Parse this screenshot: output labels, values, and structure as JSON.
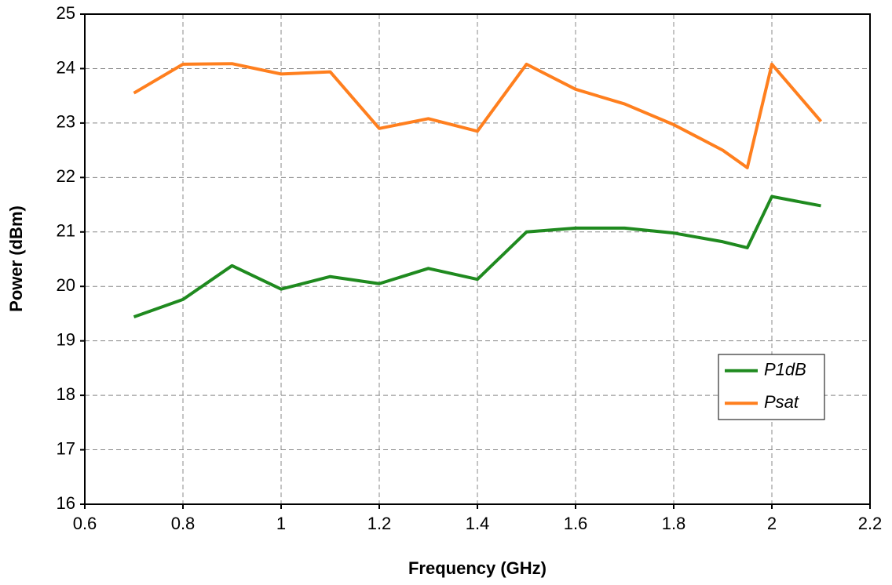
{
  "chart_data": {
    "type": "line",
    "xlabel": "Frequency (GHz)",
    "ylabel": "Power (dBm)",
    "x": [
      0.7,
      0.8,
      0.9,
      1.0,
      1.1,
      1.2,
      1.3,
      1.4,
      1.5,
      1.6,
      1.7,
      1.8,
      1.9,
      1.95,
      2.0,
      2.1
    ],
    "series": [
      {
        "name": "P1dB",
        "color": "#1f8a1f",
        "values": [
          19.44,
          19.76,
          20.38,
          19.95,
          20.18,
          20.05,
          20.33,
          20.13,
          21.0,
          21.07,
          21.07,
          20.98,
          20.82,
          20.71,
          21.65,
          21.48
        ]
      },
      {
        "name": "Psat",
        "color": "#ff7f1e",
        "values": [
          23.55,
          24.08,
          24.09,
          23.9,
          23.94,
          22.9,
          23.08,
          22.85,
          24.08,
          23.62,
          23.35,
          22.97,
          22.5,
          22.18,
          24.08,
          23.03
        ]
      }
    ],
    "xlim": [
      0.6,
      2.2
    ],
    "xticks": [
      0.6,
      0.8,
      1,
      1.2,
      1.4,
      1.6,
      1.8,
      2,
      2.2
    ],
    "ylim": [
      16,
      25
    ],
    "yticks": [
      16,
      17,
      18,
      19,
      20,
      21,
      22,
      23,
      24,
      25
    ],
    "grid": true,
    "legend": "lower right"
  }
}
